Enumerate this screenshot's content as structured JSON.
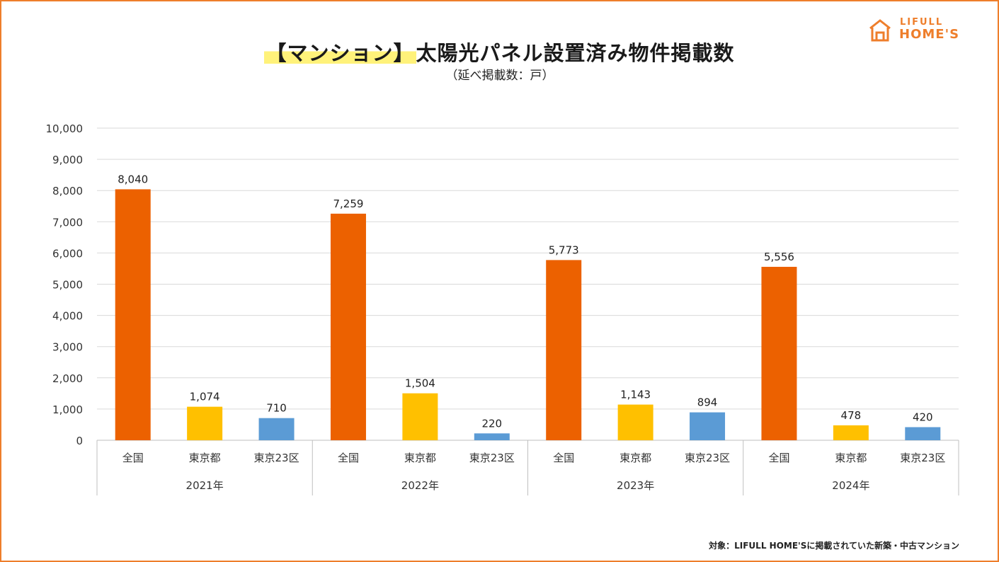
{
  "header": {
    "title_highlight": "【マンション】",
    "title_rest": "太陽光パネル設置済み物件掲載数",
    "subtitle": "（延べ掲載数：戸）"
  },
  "logo": {
    "line1": "LIFULL",
    "line2": "HOME'S",
    "color": "#ee7e2b"
  },
  "footnote": "対象：LIFULL HOME'Sに掲載されていた新築・中古マンション",
  "chart_data": {
    "type": "bar",
    "ylim": [
      0,
      10000
    ],
    "yticks": [
      "0",
      "1,000",
      "2,000",
      "3,000",
      "4,000",
      "5,000",
      "6,000",
      "7,000",
      "8,000",
      "9,000",
      "10,000"
    ],
    "grid": true,
    "groups": [
      {
        "label": "2021年",
        "bars": [
          {
            "category": "全国",
            "value": 8040,
            "label": "8,040",
            "color": "#ec6100"
          },
          {
            "category": "東京都",
            "value": 1074,
            "label": "1,074",
            "color": "#ffc000"
          },
          {
            "category": "東京23区",
            "value": 710,
            "label": "710",
            "color": "#5b9bd5"
          }
        ]
      },
      {
        "label": "2022年",
        "bars": [
          {
            "category": "全国",
            "value": 7259,
            "label": "7,259",
            "color": "#ec6100"
          },
          {
            "category": "東京都",
            "value": 1504,
            "label": "1,504",
            "color": "#ffc000"
          },
          {
            "category": "東京23区",
            "value": 220,
            "label": "220",
            "color": "#5b9bd5"
          }
        ]
      },
      {
        "label": "2023年",
        "bars": [
          {
            "category": "全国",
            "value": 5773,
            "label": "5,773",
            "color": "#ec6100"
          },
          {
            "category": "東京都",
            "value": 1143,
            "label": "1,143",
            "color": "#ffc000"
          },
          {
            "category": "東京23区",
            "value": 894,
            "label": "894",
            "color": "#5b9bd5"
          }
        ]
      },
      {
        "label": "2024年",
        "bars": [
          {
            "category": "全国",
            "value": 5556,
            "label": "5,556",
            "color": "#ec6100"
          },
          {
            "category": "東京都",
            "value": 478,
            "label": "478",
            "color": "#ffc000"
          },
          {
            "category": "東京23区",
            "value": 420,
            "label": "420",
            "color": "#5b9bd5"
          }
        ]
      }
    ]
  }
}
